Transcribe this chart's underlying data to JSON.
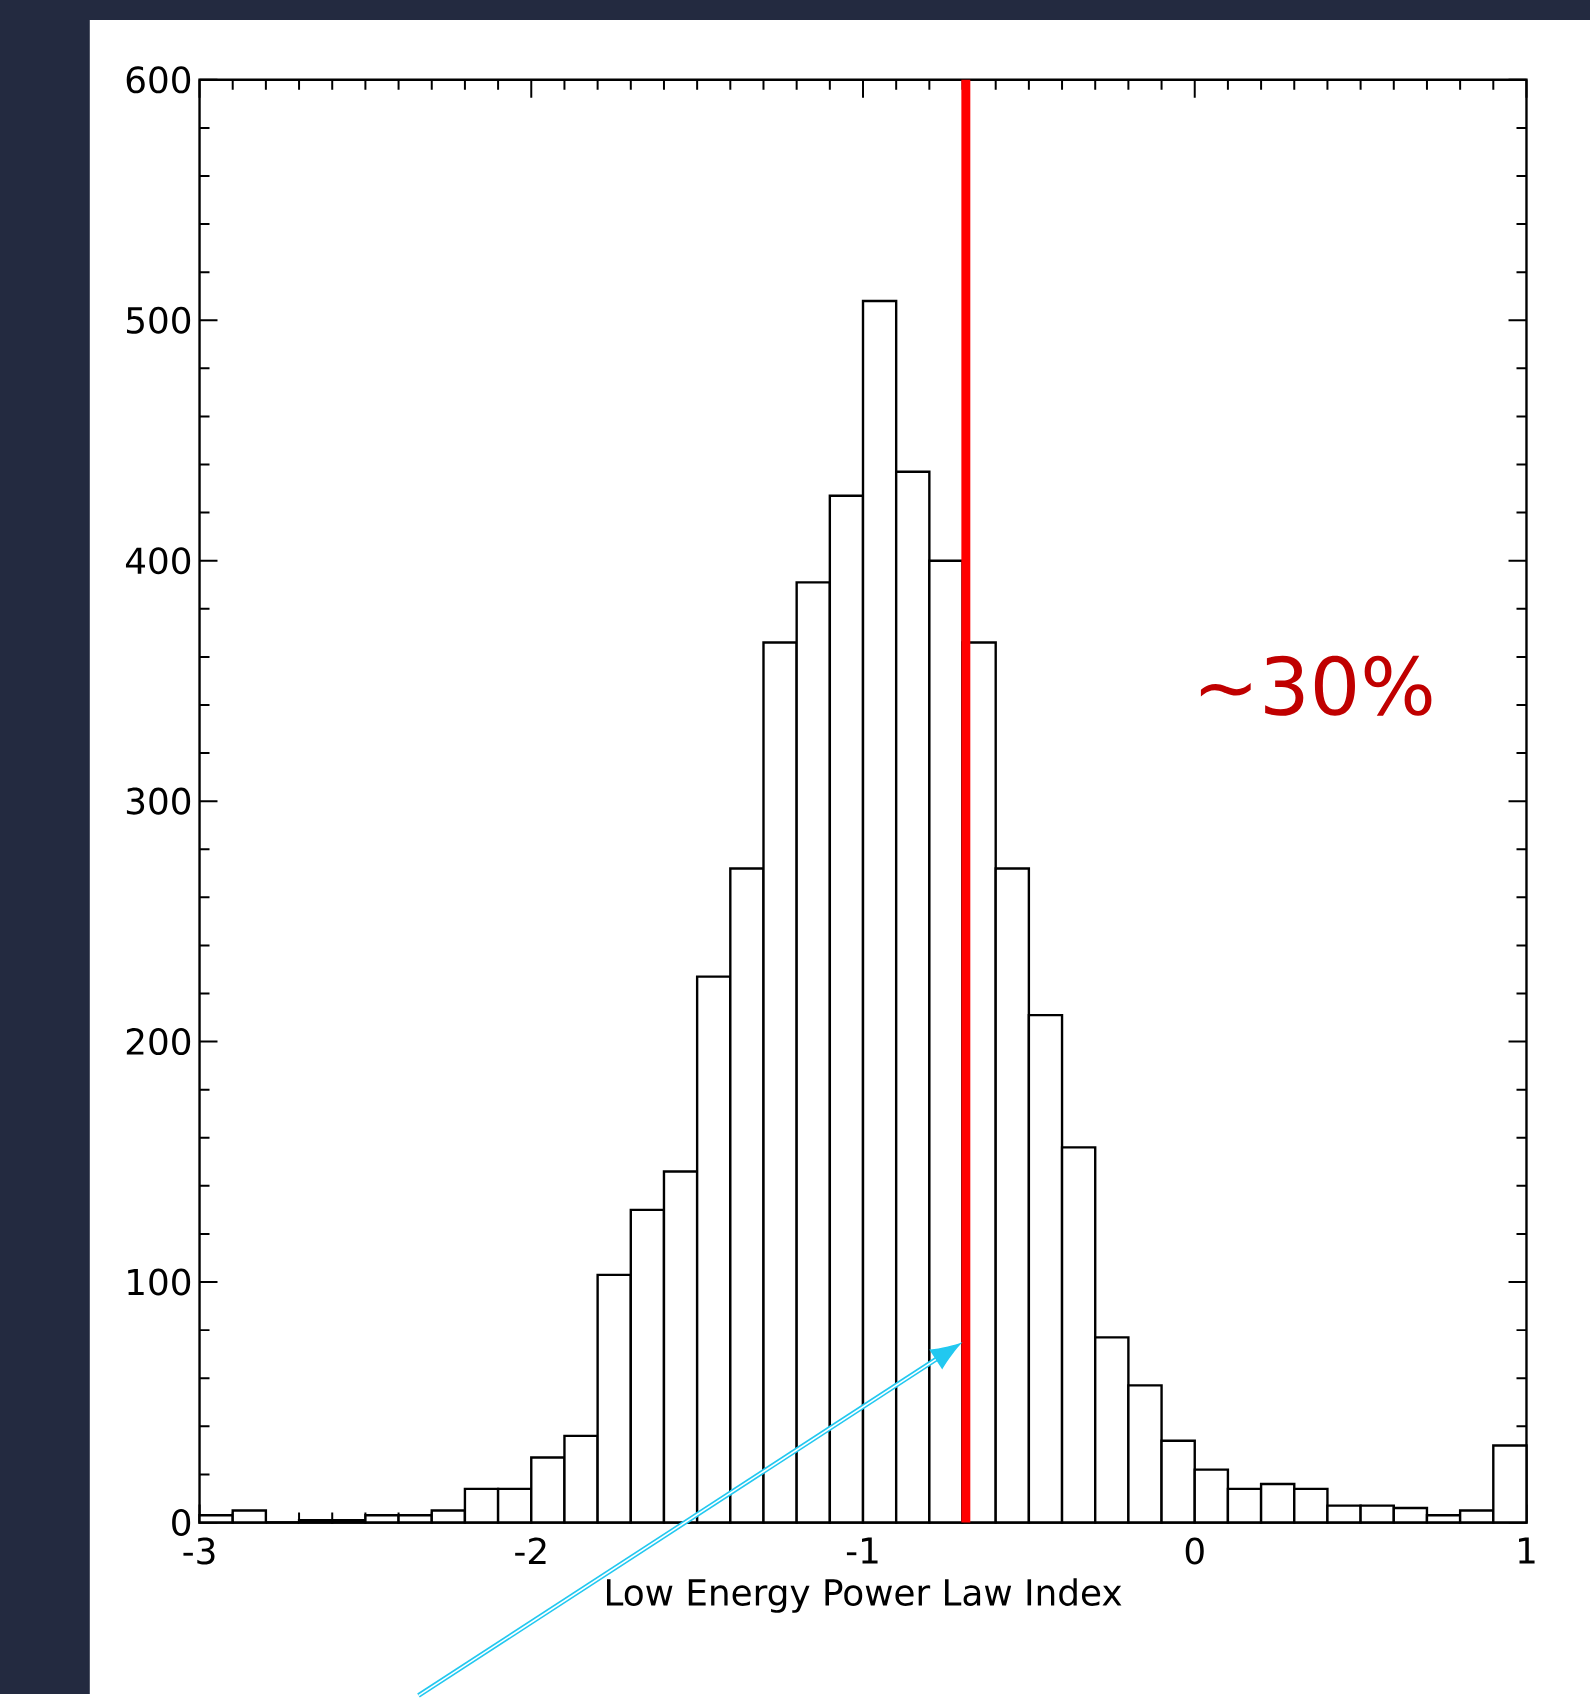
{
  "chart_data": {
    "type": "histogram",
    "bins": [
      -3.0,
      -2.9,
      -2.8,
      -2.7,
      -2.6,
      -2.5,
      -2.4,
      -2.3,
      -2.2,
      -2.1,
      -2.0,
      -1.9,
      -1.8,
      -1.7,
      -1.6,
      -1.5,
      -1.4,
      -1.3,
      -1.2,
      -1.1,
      -1.0,
      -0.9,
      -0.8,
      -0.7,
      -0.6,
      -0.5,
      -0.4,
      -0.3,
      -0.2,
      -0.1,
      0.0,
      0.1,
      0.2,
      0.3,
      0.4,
      0.5,
      0.6,
      0.7,
      0.8,
      0.9,
      1.0
    ],
    "values": [
      3,
      5,
      0,
      1,
      1,
      3,
      3,
      5,
      14,
      14,
      27,
      36,
      103,
      130,
      146,
      227,
      272,
      366,
      391,
      427,
      508,
      437,
      400,
      366,
      272,
      211,
      156,
      77,
      57,
      34,
      22,
      14,
      16,
      14,
      7,
      7,
      6,
      3,
      5,
      32
    ],
    "color": "#000000",
    "xlabel": "Low Energy Power Law Index",
    "xlim": [
      -3,
      1
    ],
    "xticks": [
      -3,
      -2,
      -1,
      0,
      1
    ],
    "ylim": [
      0,
      600
    ],
    "yticks": [
      0,
      100,
      200,
      300,
      400,
      500,
      600
    ],
    "ref_lines": [
      {
        "axis": "x",
        "value": -0.69,
        "color": "#ff0000"
      }
    ],
    "annotations": [
      "~30%"
    ]
  }
}
